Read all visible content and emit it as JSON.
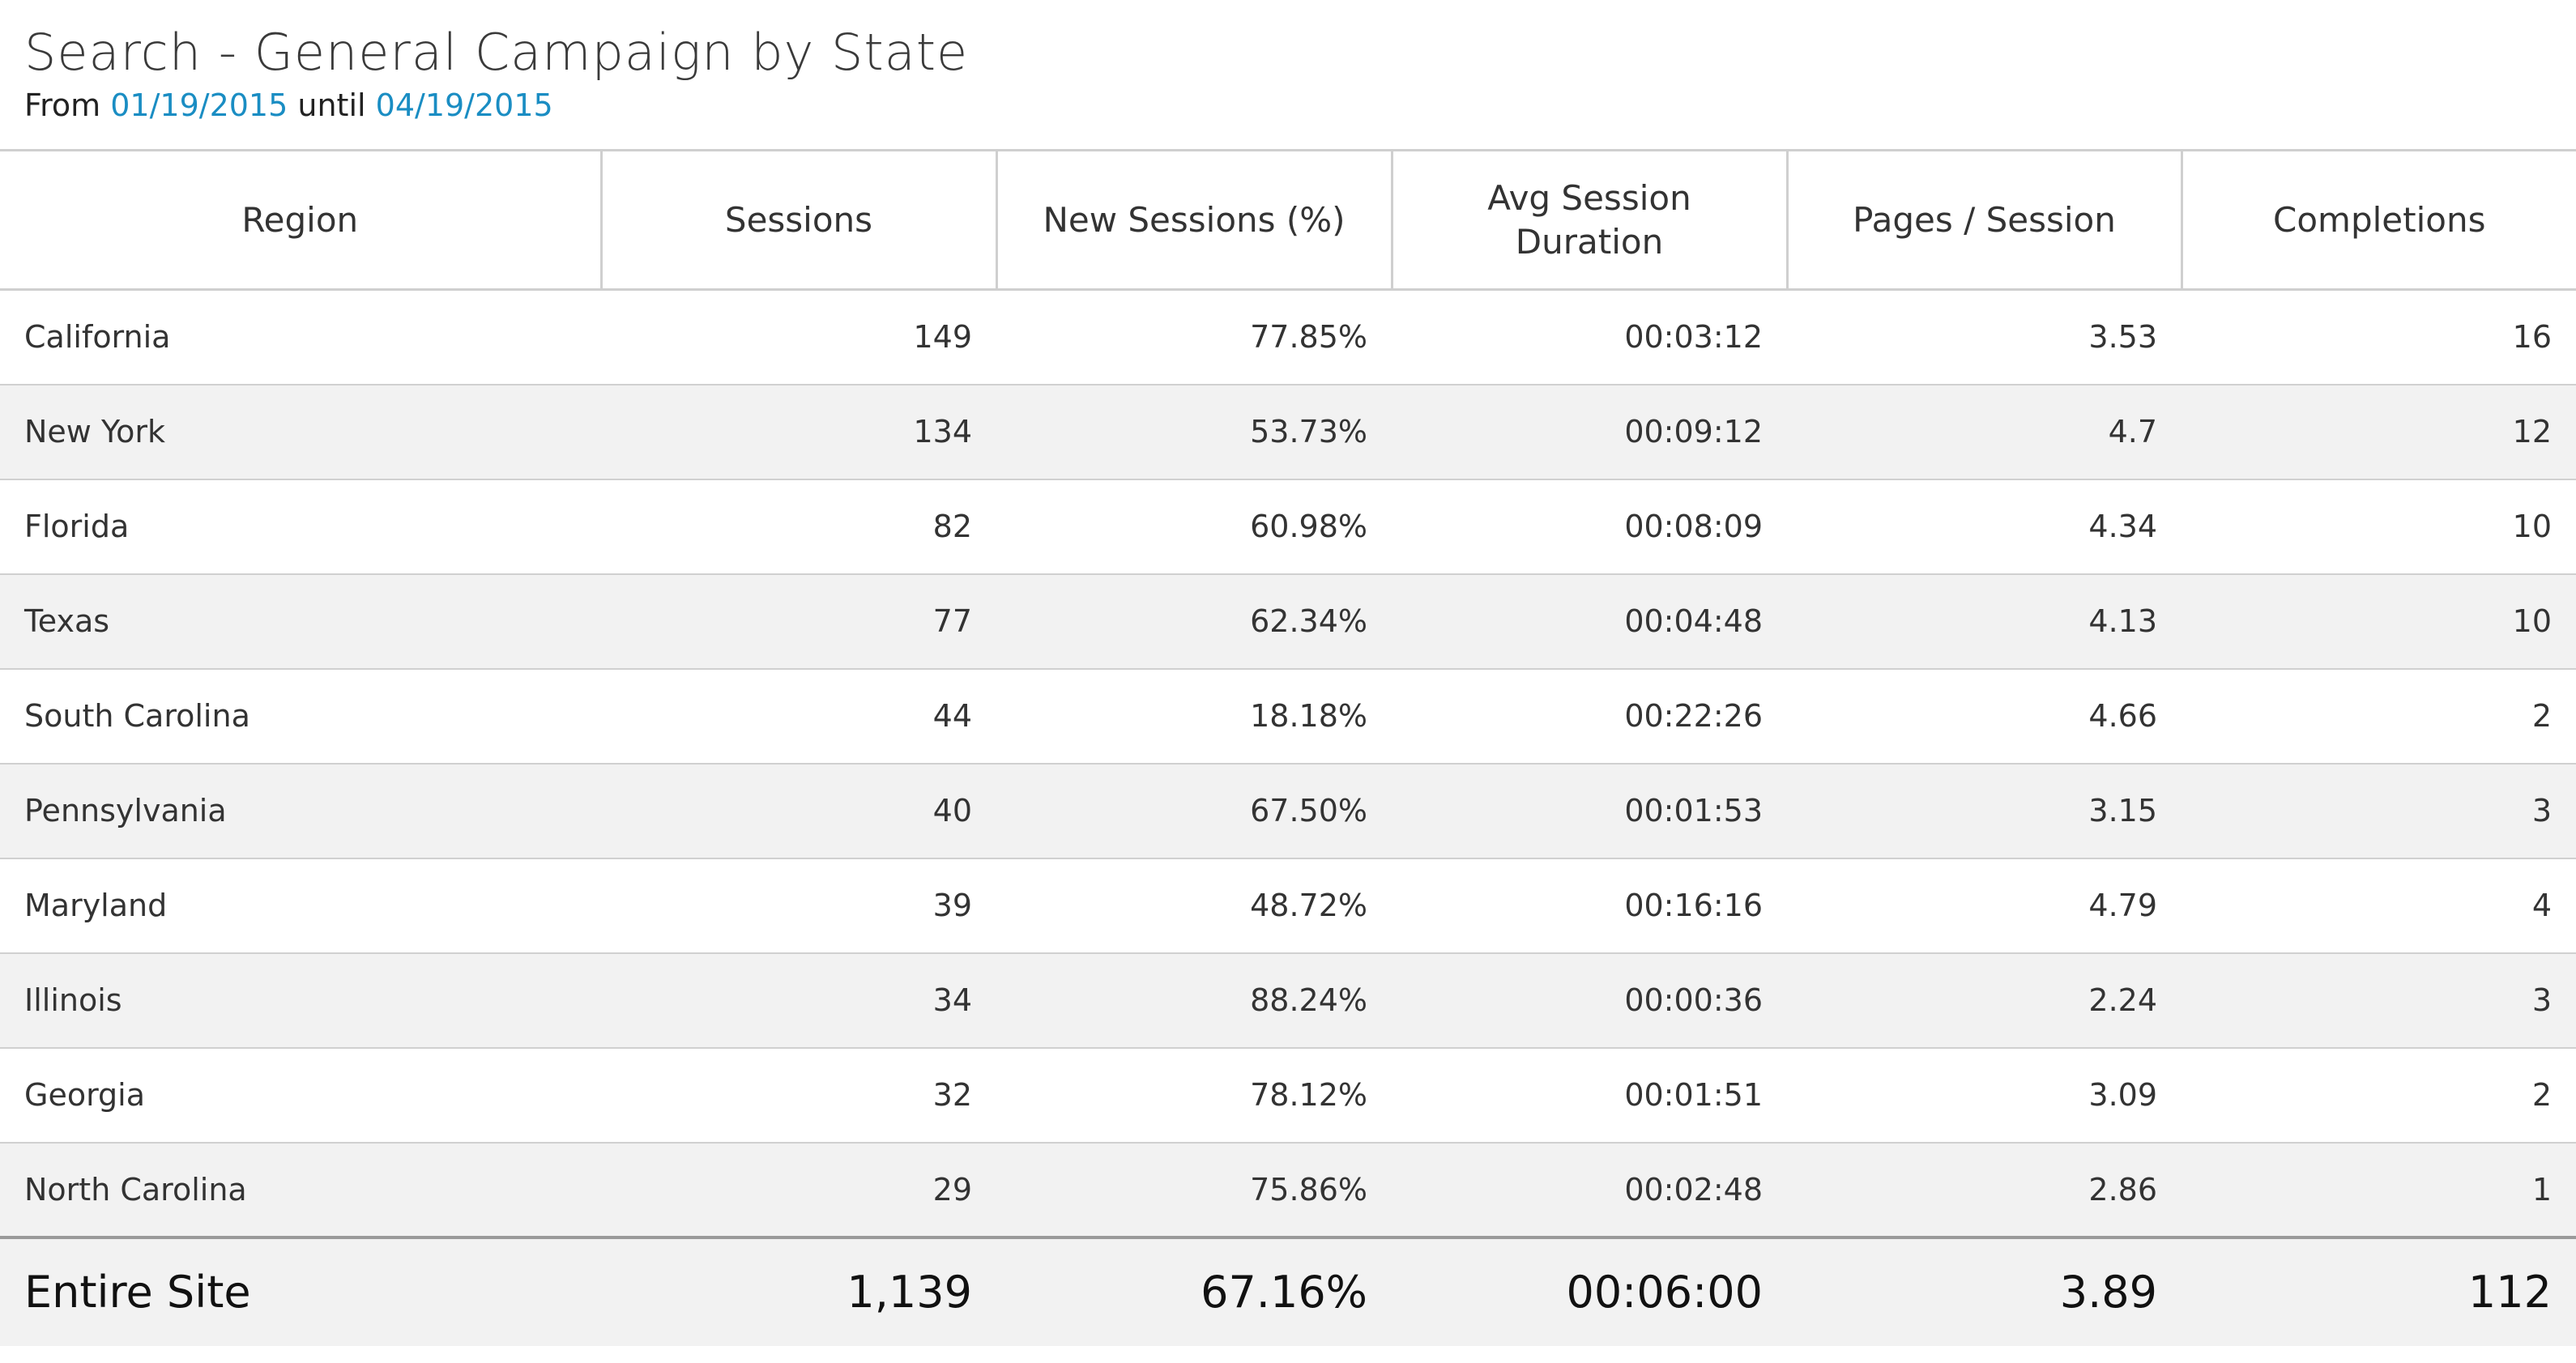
{
  "report": {
    "title": "Search - General Campaign by State",
    "from_label": "From",
    "from_date": "01/19/2015",
    "until_label": "until",
    "until_date": "04/19/2015"
  },
  "table": {
    "headers": [
      "Region",
      "Sessions",
      "New Sessions (%)",
      "Avg Session Duration",
      "Pages / Session",
      "Completions"
    ],
    "rows": [
      [
        "California",
        "149",
        "77.85%",
        "00:03:12",
        "3.53",
        "16"
      ],
      [
        "New York",
        "134",
        "53.73%",
        "00:09:12",
        "4.7",
        "12"
      ],
      [
        "Florida",
        "82",
        "60.98%",
        "00:08:09",
        "4.34",
        "10"
      ],
      [
        "Texas",
        "77",
        "62.34%",
        "00:04:48",
        "4.13",
        "10"
      ],
      [
        "South Carolina",
        "44",
        "18.18%",
        "00:22:26",
        "4.66",
        "2"
      ],
      [
        "Pennsylvania",
        "40",
        "67.50%",
        "00:01:53",
        "3.15",
        "3"
      ],
      [
        "Maryland",
        "39",
        "48.72%",
        "00:16:16",
        "4.79",
        "4"
      ],
      [
        "Illinois",
        "34",
        "88.24%",
        "00:00:36",
        "2.24",
        "3"
      ],
      [
        "Georgia",
        "32",
        "78.12%",
        "00:01:51",
        "3.09",
        "2"
      ],
      [
        "North Carolina",
        "29",
        "75.86%",
        "00:02:48",
        "2.86",
        "1"
      ]
    ],
    "total": [
      "Entire Site",
      "1,139",
      "67.16%",
      "00:06:00",
      "3.89",
      "112"
    ]
  },
  "colors": {
    "date_link": "#1a8dc3",
    "alt_row": "#f2f2f2"
  }
}
